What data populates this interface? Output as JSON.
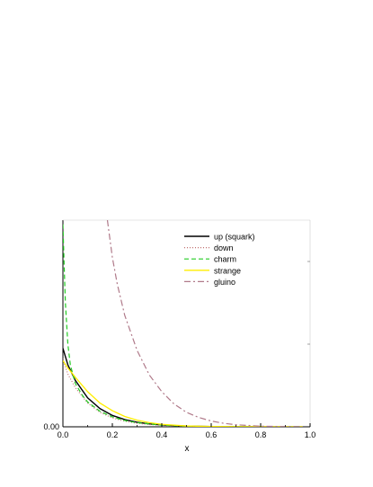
{
  "chart_data": {
    "type": "line",
    "title": "",
    "xlabel": "x",
    "ylabel": "",
    "xlim": [
      0.0,
      1.0
    ],
    "ylim": [
      0.0,
      1.0
    ],
    "x_ticks": [
      "0.0",
      "0.2",
      "0.4",
      "0.6",
      "0.8",
      "1.0"
    ],
    "x_tick_values": [
      0.0,
      0.2,
      0.4,
      0.6,
      0.8,
      1.0
    ],
    "y_ticks": [
      "0.00"
    ],
    "y_tick_values": [
      0.0
    ],
    "grid": false,
    "legend_position": "top-right",
    "series": [
      {
        "name": "up (squark)",
        "color": "#000000",
        "style": "solid",
        "x": [
          0.0,
          0.01,
          0.02,
          0.05,
          0.1,
          0.15,
          0.2,
          0.25,
          0.3,
          0.35,
          0.4,
          0.5,
          0.6,
          0.7,
          0.8,
          0.9,
          0.97
        ],
        "y": [
          0.38,
          0.34,
          0.3,
          0.225,
          0.14,
          0.088,
          0.055,
          0.035,
          0.022,
          0.014,
          0.009,
          0.0035,
          0.0013,
          0.0005,
          0.0002,
          0.0001,
          0.0
        ]
      },
      {
        "name": "down",
        "color": "#c07070",
        "style": "dotted",
        "x": [
          0.0,
          0.01,
          0.02,
          0.05,
          0.1,
          0.15,
          0.2,
          0.25,
          0.3,
          0.35,
          0.4,
          0.5,
          0.6,
          0.7,
          0.8,
          0.9,
          0.97
        ],
        "y": [
          0.33,
          0.29,
          0.255,
          0.19,
          0.115,
          0.07,
          0.043,
          0.027,
          0.017,
          0.011,
          0.007,
          0.0028,
          0.0011,
          0.0004,
          0.0002,
          0.0001,
          0.0
        ]
      },
      {
        "name": "charm",
        "color": "#22cc22",
        "style": "dashed",
        "x": [
          0.0,
          0.005,
          0.01,
          0.02,
          0.03,
          0.05,
          0.08,
          0.1,
          0.15,
          0.2,
          0.25,
          0.3,
          0.4,
          0.5,
          0.6,
          0.7,
          0.8,
          0.9,
          0.97
        ],
        "y": [
          0.98,
          0.78,
          0.6,
          0.4,
          0.3,
          0.21,
          0.15,
          0.12,
          0.075,
          0.048,
          0.031,
          0.02,
          0.008,
          0.003,
          0.0012,
          0.0005,
          0.0002,
          0.0001,
          0.0
        ]
      },
      {
        "name": "strange",
        "color": "#ffee00",
        "style": "solid",
        "x": [
          0.0,
          0.02,
          0.05,
          0.1,
          0.15,
          0.2,
          0.25,
          0.3,
          0.35,
          0.4,
          0.5,
          0.6,
          0.7,
          0.8,
          0.9,
          0.97
        ],
        "y": [
          0.32,
          0.285,
          0.24,
          0.17,
          0.115,
          0.078,
          0.05,
          0.032,
          0.02,
          0.012,
          0.004,
          0.0015,
          0.0005,
          0.0002,
          0.0001,
          0.0
        ]
      },
      {
        "name": "gluino",
        "color": "#b07a8a",
        "style": "dashdot",
        "x": [
          0.18,
          0.2,
          0.22,
          0.25,
          0.3,
          0.35,
          0.4,
          0.45,
          0.5,
          0.55,
          0.6,
          0.65,
          0.7,
          0.8,
          0.9,
          0.97
        ],
        "y": [
          1.0,
          0.82,
          0.69,
          0.54,
          0.37,
          0.25,
          0.17,
          0.11,
          0.07,
          0.045,
          0.028,
          0.017,
          0.01,
          0.003,
          0.001,
          0.0
        ]
      }
    ]
  }
}
